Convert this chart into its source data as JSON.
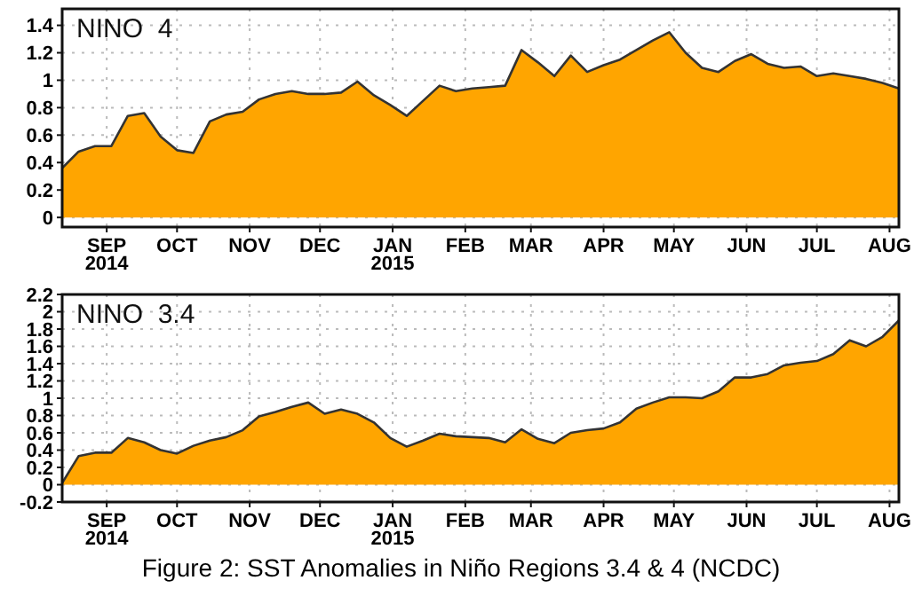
{
  "chart_data": [
    {
      "type": "area",
      "title": "NINO  4",
      "x": [
        "2014-08-13",
        "2014-08-20",
        "2014-08-27",
        "2014-09-03",
        "2014-09-10",
        "2014-09-17",
        "2014-09-24",
        "2014-10-01",
        "2014-10-08",
        "2014-10-15",
        "2014-10-22",
        "2014-10-29",
        "2014-11-05",
        "2014-11-12",
        "2014-11-19",
        "2014-11-26",
        "2014-12-03",
        "2014-12-10",
        "2014-12-17",
        "2014-12-24",
        "2014-12-31",
        "2015-01-07",
        "2015-01-14",
        "2015-01-21",
        "2015-01-28",
        "2015-02-04",
        "2015-02-11",
        "2015-02-18",
        "2015-02-25",
        "2015-03-04",
        "2015-03-11",
        "2015-03-18",
        "2015-03-25",
        "2015-04-01",
        "2015-04-08",
        "2015-04-15",
        "2015-04-22",
        "2015-04-29",
        "2015-05-06",
        "2015-05-13",
        "2015-05-20",
        "2015-05-27",
        "2015-06-03",
        "2015-06-10",
        "2015-06-17",
        "2015-06-24",
        "2015-07-01",
        "2015-07-08",
        "2015-07-15",
        "2015-07-22",
        "2015-07-29",
        "2015-08-05"
      ],
      "series": [
        {
          "color": "#ffa500",
          "values": [
            0.36,
            0.48,
            0.52,
            0.52,
            0.74,
            0.76,
            0.59,
            0.49,
            0.47,
            0.7,
            0.75,
            0.77,
            0.86,
            0.9,
            0.92,
            0.9,
            0.9,
            0.91,
            0.99,
            0.89,
            0.82,
            0.74,
            0.85,
            0.96,
            0.92,
            0.94,
            0.95,
            0.96,
            1.22,
            1.13,
            1.03,
            1.18,
            1.06,
            1.11,
            1.15,
            1.22,
            1.29,
            1.35,
            1.2,
            1.09,
            1.06,
            1.14,
            1.19,
            1.12,
            1.09,
            1.1,
            1.03,
            1.05,
            1.03,
            1.01,
            0.98,
            0.94
          ]
        }
      ],
      "xlim": [
        "2014-08-13",
        "2015-08-05"
      ],
      "xticks": [
        {
          "value": "2014-09-01",
          "label": "SEP\n2014"
        },
        {
          "value": "2014-10-01",
          "label": "OCT"
        },
        {
          "value": "2014-11-01",
          "label": "NOV"
        },
        {
          "value": "2014-12-01",
          "label": "DEC"
        },
        {
          "value": "2015-01-01",
          "label": "JAN\n2015"
        },
        {
          "value": "2015-02-01",
          "label": "FEB"
        },
        {
          "value": "2015-03-01",
          "label": "MAR"
        },
        {
          "value": "2015-04-01",
          "label": "APR"
        },
        {
          "value": "2015-05-01",
          "label": "MAY"
        },
        {
          "value": "2015-06-01",
          "label": "JUN"
        },
        {
          "value": "2015-07-01",
          "label": "JUL"
        },
        {
          "value": "2015-08-01",
          "label": "AUG"
        }
      ],
      "ylim": [
        -0.07,
        1.52
      ],
      "yticks": [
        0,
        0.2,
        0.4,
        0.6,
        0.8,
        1,
        1.2,
        1.4
      ],
      "grid": true
    },
    {
      "type": "area",
      "title": "NINO  3.4",
      "x": [
        "2014-08-13",
        "2014-08-20",
        "2014-08-27",
        "2014-09-03",
        "2014-09-10",
        "2014-09-17",
        "2014-09-24",
        "2014-10-01",
        "2014-10-08",
        "2014-10-15",
        "2014-10-22",
        "2014-10-29",
        "2014-11-05",
        "2014-11-12",
        "2014-11-19",
        "2014-11-26",
        "2014-12-03",
        "2014-12-10",
        "2014-12-17",
        "2014-12-24",
        "2014-12-31",
        "2015-01-07",
        "2015-01-14",
        "2015-01-21",
        "2015-01-28",
        "2015-02-04",
        "2015-02-11",
        "2015-02-18",
        "2015-02-25",
        "2015-03-04",
        "2015-03-11",
        "2015-03-18",
        "2015-03-25",
        "2015-04-01",
        "2015-04-08",
        "2015-04-15",
        "2015-04-22",
        "2015-04-29",
        "2015-05-06",
        "2015-05-13",
        "2015-05-20",
        "2015-05-27",
        "2015-06-03",
        "2015-06-10",
        "2015-06-17",
        "2015-06-24",
        "2015-07-01",
        "2015-07-08",
        "2015-07-15",
        "2015-07-22",
        "2015-07-29",
        "2015-08-05"
      ],
      "series": [
        {
          "color": "#ffa500",
          "values": [
            0.02,
            0.33,
            0.37,
            0.37,
            0.54,
            0.49,
            0.4,
            0.36,
            0.45,
            0.51,
            0.55,
            0.63,
            0.79,
            0.84,
            0.9,
            0.95,
            0.82,
            0.87,
            0.82,
            0.72,
            0.54,
            0.44,
            0.51,
            0.59,
            0.56,
            0.55,
            0.54,
            0.49,
            0.64,
            0.53,
            0.48,
            0.6,
            0.63,
            0.65,
            0.72,
            0.88,
            0.95,
            1.01,
            1.01,
            1.0,
            1.08,
            1.24,
            1.24,
            1.28,
            1.38,
            1.41,
            1.43,
            1.51,
            1.67,
            1.6,
            1.71,
            1.9
          ]
        }
      ],
      "xlim": [
        "2014-08-13",
        "2015-08-05"
      ],
      "xticks": [
        {
          "value": "2014-09-01",
          "label": "SEP\n2014"
        },
        {
          "value": "2014-10-01",
          "label": "OCT"
        },
        {
          "value": "2014-11-01",
          "label": "NOV"
        },
        {
          "value": "2014-12-01",
          "label": "DEC"
        },
        {
          "value": "2015-01-01",
          "label": "JAN\n2015"
        },
        {
          "value": "2015-02-01",
          "label": "FEB"
        },
        {
          "value": "2015-03-01",
          "label": "MAR"
        },
        {
          "value": "2015-04-01",
          "label": "APR"
        },
        {
          "value": "2015-05-01",
          "label": "MAY"
        },
        {
          "value": "2015-06-01",
          "label": "JUN"
        },
        {
          "value": "2015-07-01",
          "label": "JUL"
        },
        {
          "value": "2015-08-01",
          "label": "AUG"
        }
      ],
      "ylim": [
        -0.2,
        2.2
      ],
      "yticks": [
        -0.2,
        0,
        0.2,
        0.4,
        0.6,
        0.8,
        1,
        1.2,
        1.4,
        1.6,
        1.8,
        2,
        2.2
      ],
      "grid": true,
      "annotations": [
        "Figure 2: SST Anomalies in Niño Regions 3.4 & 4 (NCDC)"
      ]
    }
  ]
}
